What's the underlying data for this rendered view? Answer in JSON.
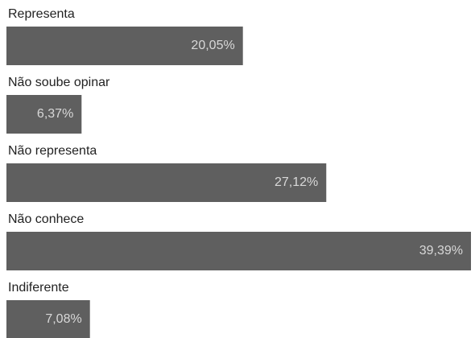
{
  "chart_data": {
    "type": "bar",
    "orientation": "horizontal",
    "categories": [
      "Representa",
      "Não soube opinar",
      "Não representa",
      "Não conhece",
      "Indiferente"
    ],
    "values": [
      20.05,
      6.37,
      27.12,
      39.39,
      7.08
    ],
    "value_labels": [
      "20,05%",
      "6,37%",
      "27,12%",
      "39,39%",
      "7,08%"
    ],
    "color": "#5f5f5f"
  }
}
